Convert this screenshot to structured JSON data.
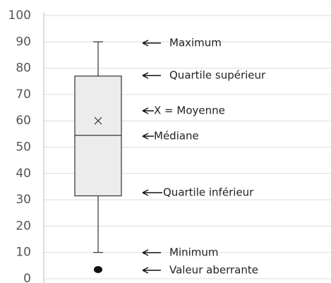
{
  "chart_data": {
    "type": "box",
    "ylim": [
      0,
      100
    ],
    "yticks": [
      0,
      10,
      20,
      30,
      40,
      50,
      60,
      70,
      80,
      90,
      100
    ],
    "grid": true,
    "color": "#ececec",
    "stroke": "#333333",
    "box": {
      "min": 10,
      "q1": 31.5,
      "median": 54.5,
      "q3": 77,
      "max": 90,
      "mean": 60,
      "outliers": [
        3.5
      ]
    },
    "annotations": [
      "Maximum",
      "Quartile supérieur",
      "X = Moyenne",
      "Médiane",
      "Quartile inférieur",
      "Minimum",
      "Valeur aberrante"
    ]
  }
}
